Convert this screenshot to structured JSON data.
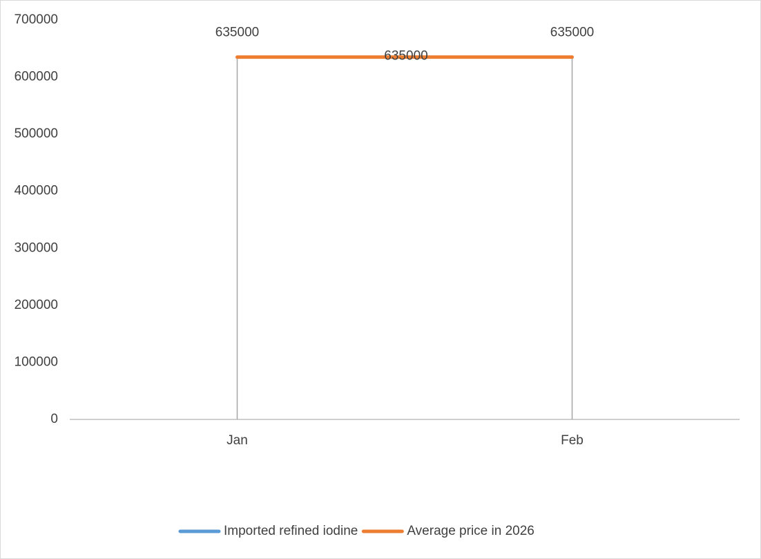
{
  "chart_data": {
    "type": "line",
    "categories": [
      "Jan",
      "Feb"
    ],
    "series": [
      {
        "name": "Imported refined iodine",
        "color": "#5b9bd5",
        "values": [
          635000,
          635000
        ]
      },
      {
        "name": "Average price in 2026",
        "color": "#ed7d31",
        "values": [
          635000,
          635000
        ]
      }
    ],
    "ylim": [
      0,
      700000
    ],
    "yticks": [
      0,
      100000,
      200000,
      300000,
      400000,
      500000,
      600000,
      700000
    ],
    "drop_lines": true,
    "grid": false,
    "legend": "bottom"
  }
}
